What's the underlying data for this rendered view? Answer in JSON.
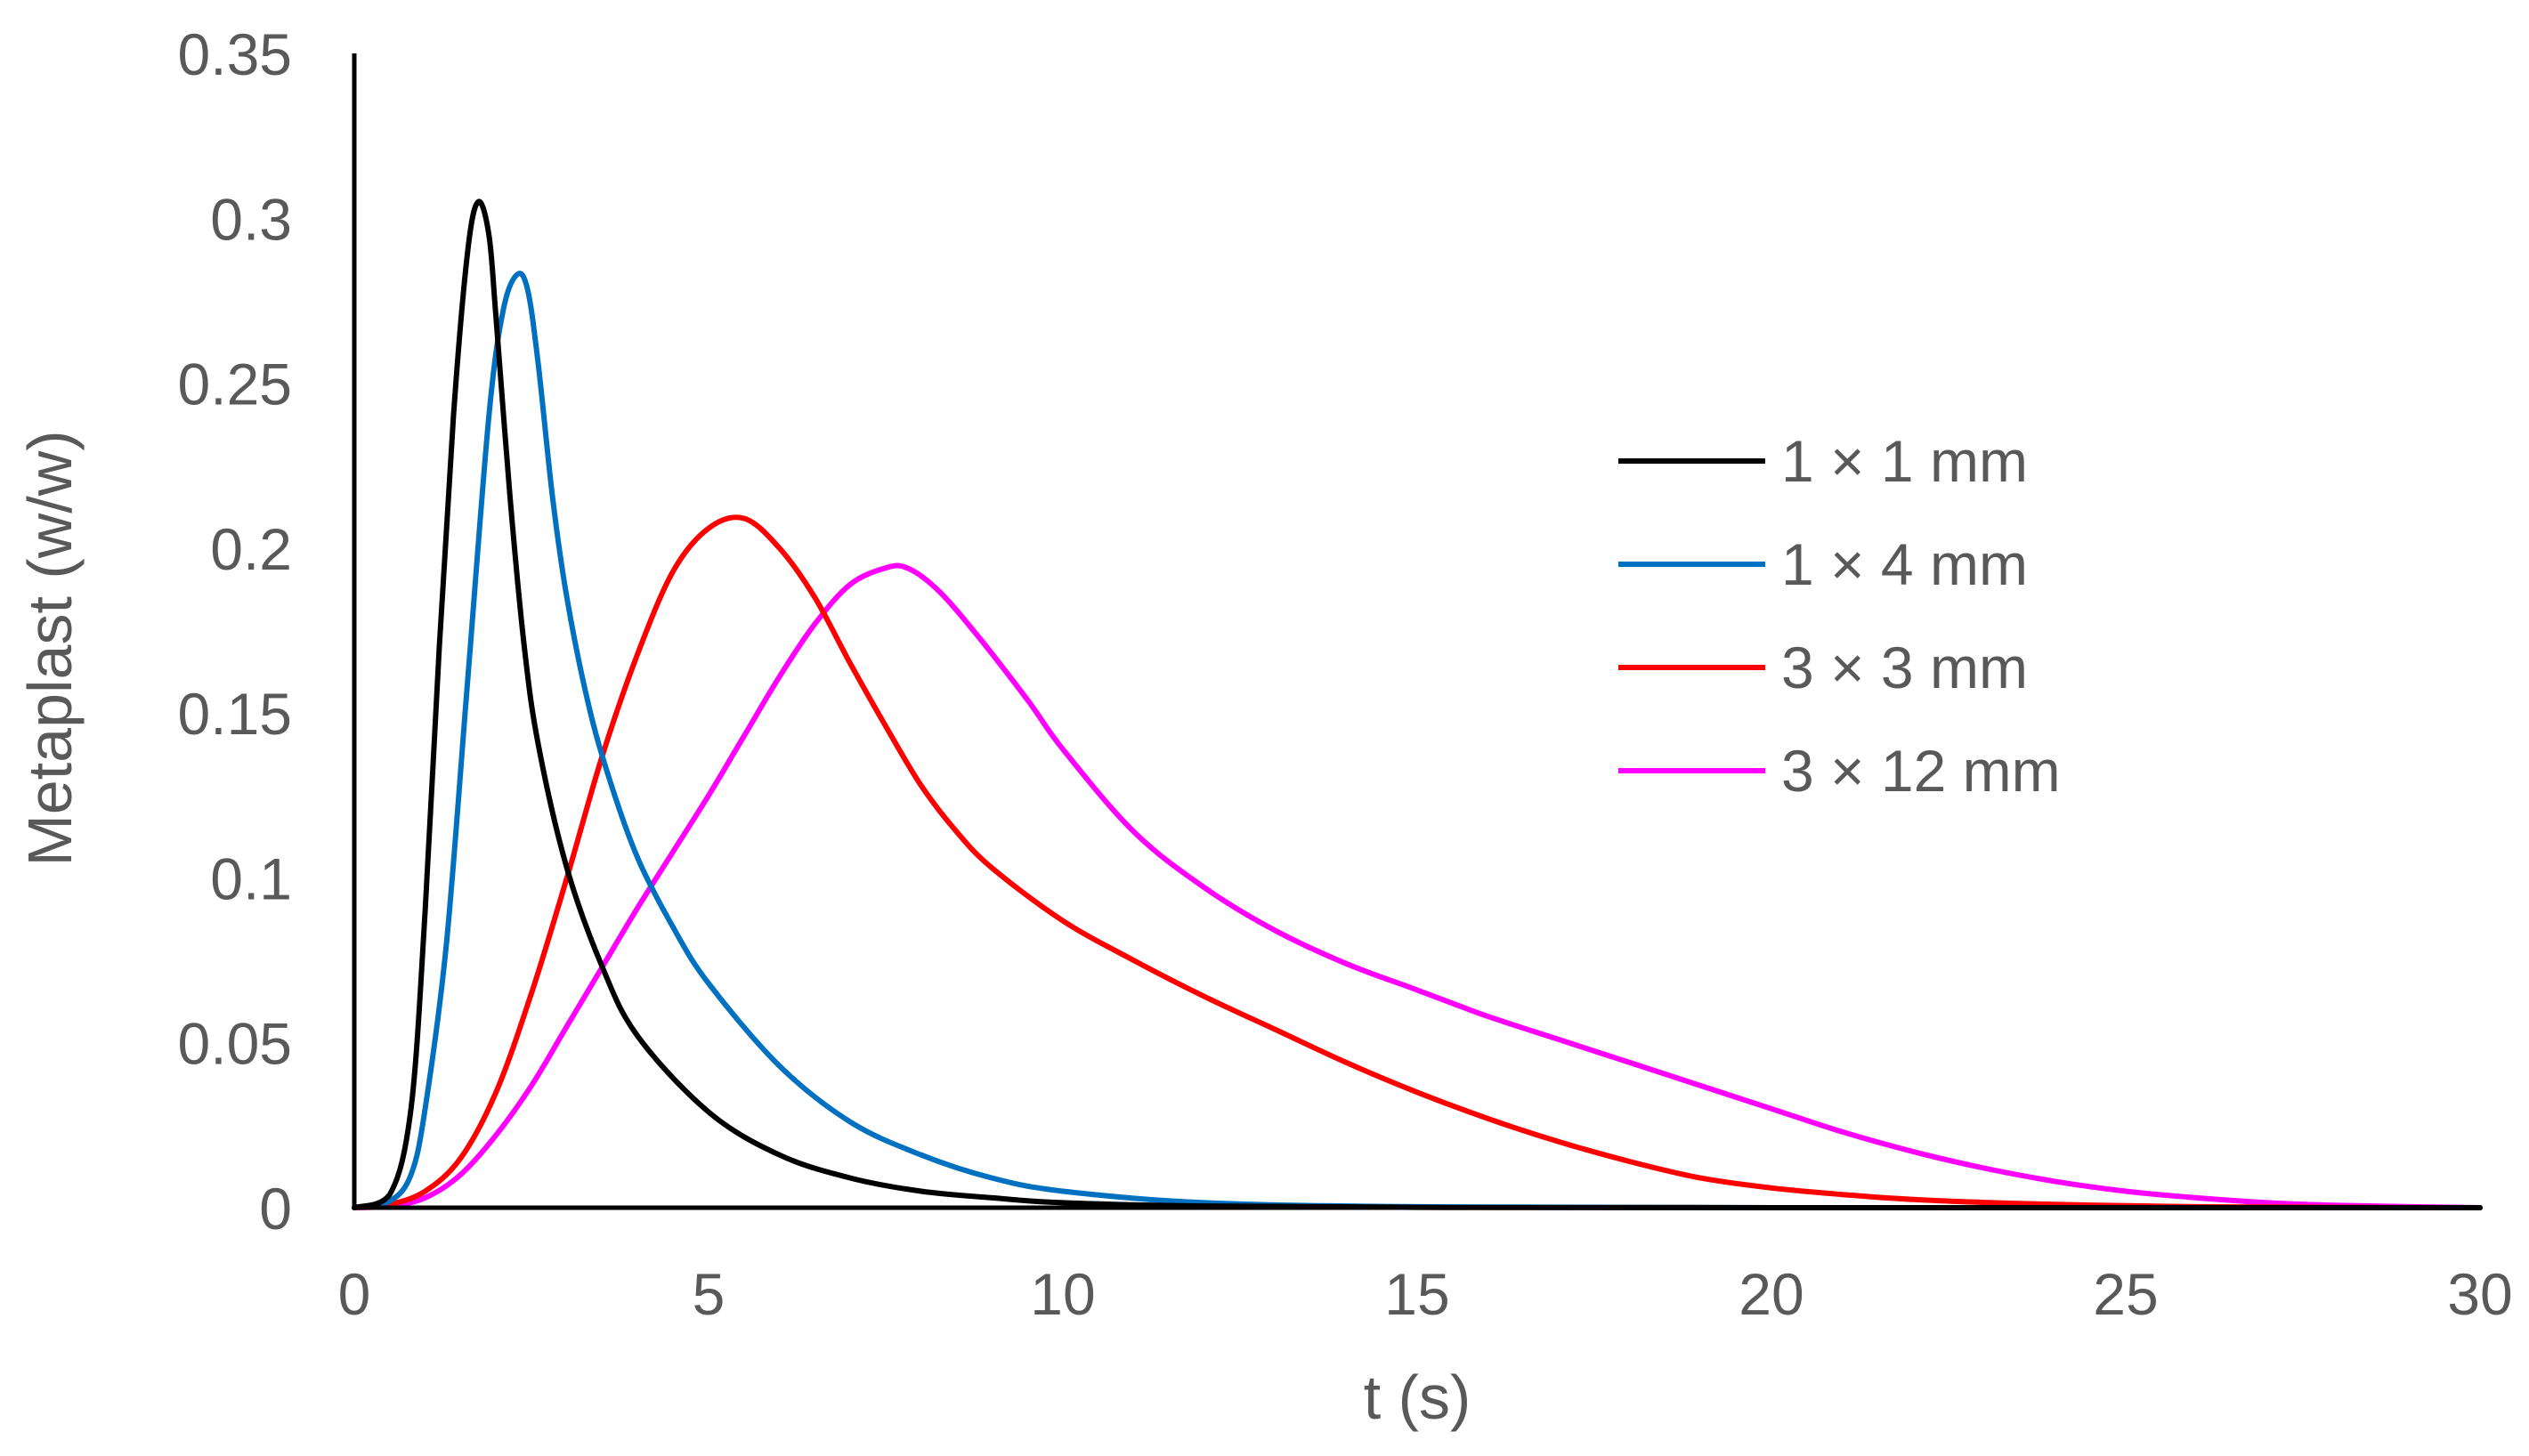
{
  "chart_data": {
    "type": "line",
    "title": "",
    "xlabel": "t (s)",
    "ylabel": "Metaplast (w/w)",
    "xlim": [
      0,
      30
    ],
    "ylim": [
      0,
      0.35
    ],
    "grid": false,
    "legend_position": "right",
    "x_ticks": [
      "0",
      "5",
      "10",
      "15",
      "20",
      "25",
      "30"
    ],
    "y_ticks": [
      "0",
      "0.05",
      "0.1",
      "0.15",
      "0.2",
      "0.25",
      "0.3",
      "0.35"
    ],
    "series": [
      {
        "name": "1 × 1 mm",
        "color": "#000000",
        "x": [
          0,
          0.5,
          0.8,
          1.0,
          1.2,
          1.4,
          1.6,
          1.75,
          1.9,
          2.0,
          2.2,
          2.4,
          2.6,
          3.0,
          3.5,
          4.0,
          5.0,
          6.0,
          7.0,
          8.0,
          9.0,
          10.0,
          12.0,
          15.0,
          20.0,
          30.0
        ],
        "y": [
          0,
          0.004,
          0.03,
          0.09,
          0.17,
          0.24,
          0.29,
          0.305,
          0.295,
          0.27,
          0.215,
          0.17,
          0.14,
          0.103,
          0.073,
          0.052,
          0.029,
          0.016,
          0.009,
          0.005,
          0.003,
          0.0015,
          0.0005,
          0.0001,
          0,
          0
        ]
      },
      {
        "name": "1 × 4 mm",
        "color": "#0070c0",
        "x": [
          0,
          0.5,
          0.8,
          1.0,
          1.3,
          1.6,
          1.9,
          2.1,
          2.3,
          2.45,
          2.6,
          2.8,
          3.0,
          3.3,
          3.6,
          4.0,
          4.5,
          5.0,
          6.0,
          7.0,
          8.0,
          9.0,
          10.0,
          12.0,
          15.0,
          20.0,
          30.0
        ],
        "y": [
          0,
          0.002,
          0.01,
          0.03,
          0.08,
          0.16,
          0.24,
          0.272,
          0.283,
          0.278,
          0.255,
          0.215,
          0.185,
          0.153,
          0.13,
          0.106,
          0.085,
          0.068,
          0.043,
          0.026,
          0.016,
          0.009,
          0.005,
          0.0015,
          0.0003,
          0,
          0
        ]
      },
      {
        "name": "3 × 3 mm",
        "color": "#ff0000",
        "x": [
          0,
          0.5,
          1.0,
          1.5,
          2.0,
          2.5,
          3.0,
          3.5,
          4.0,
          4.5,
          5.0,
          5.5,
          6.0,
          6.5,
          7.0,
          7.5,
          8.0,
          8.5,
          9.0,
          10.0,
          11.0,
          12.0,
          13.0,
          14.0,
          15.0,
          16.0,
          17.0,
          18.0,
          19.0,
          20.0,
          21.0,
          22.0,
          23.0,
          24.0,
          25.0,
          26.0,
          27.0,
          28.0,
          30.0
        ],
        "y": [
          0,
          0.001,
          0.005,
          0.015,
          0.035,
          0.065,
          0.1,
          0.137,
          0.168,
          0.193,
          0.206,
          0.209,
          0.2,
          0.185,
          0.165,
          0.146,
          0.128,
          0.114,
          0.103,
          0.087,
          0.075,
          0.064,
          0.054,
          0.044,
          0.035,
          0.027,
          0.02,
          0.014,
          0.009,
          0.006,
          0.004,
          0.0025,
          0.0016,
          0.001,
          0.0006,
          0.0003,
          0.0002,
          0.0001,
          0
        ]
      },
      {
        "name": "3 × 12 mm",
        "color": "#ff00ff",
        "x": [
          0,
          0.5,
          1.0,
          1.5,
          2.0,
          2.5,
          3.0,
          3.5,
          4.0,
          4.5,
          5.0,
          5.5,
          6.0,
          6.5,
          7.0,
          7.5,
          7.8,
          8.2,
          8.7,
          9.5,
          10.0,
          11.0,
          12.0,
          13.0,
          14.0,
          15.0,
          16.0,
          17.0,
          18.0,
          19.0,
          20.0,
          21.0,
          22.0,
          23.0,
          24.0,
          25.0,
          26.0,
          27.0,
          28.0,
          30.0
        ],
        "y": [
          0,
          0.0005,
          0.003,
          0.01,
          0.022,
          0.037,
          0.055,
          0.073,
          0.091,
          0.108,
          0.125,
          0.143,
          0.161,
          0.177,
          0.189,
          0.194,
          0.194,
          0.188,
          0.176,
          0.154,
          0.139,
          0.114,
          0.097,
          0.084,
          0.074,
          0.066,
          0.058,
          0.051,
          0.044,
          0.037,
          0.03,
          0.023,
          0.017,
          0.012,
          0.008,
          0.005,
          0.003,
          0.0015,
          0.0007,
          0
        ]
      }
    ]
  }
}
